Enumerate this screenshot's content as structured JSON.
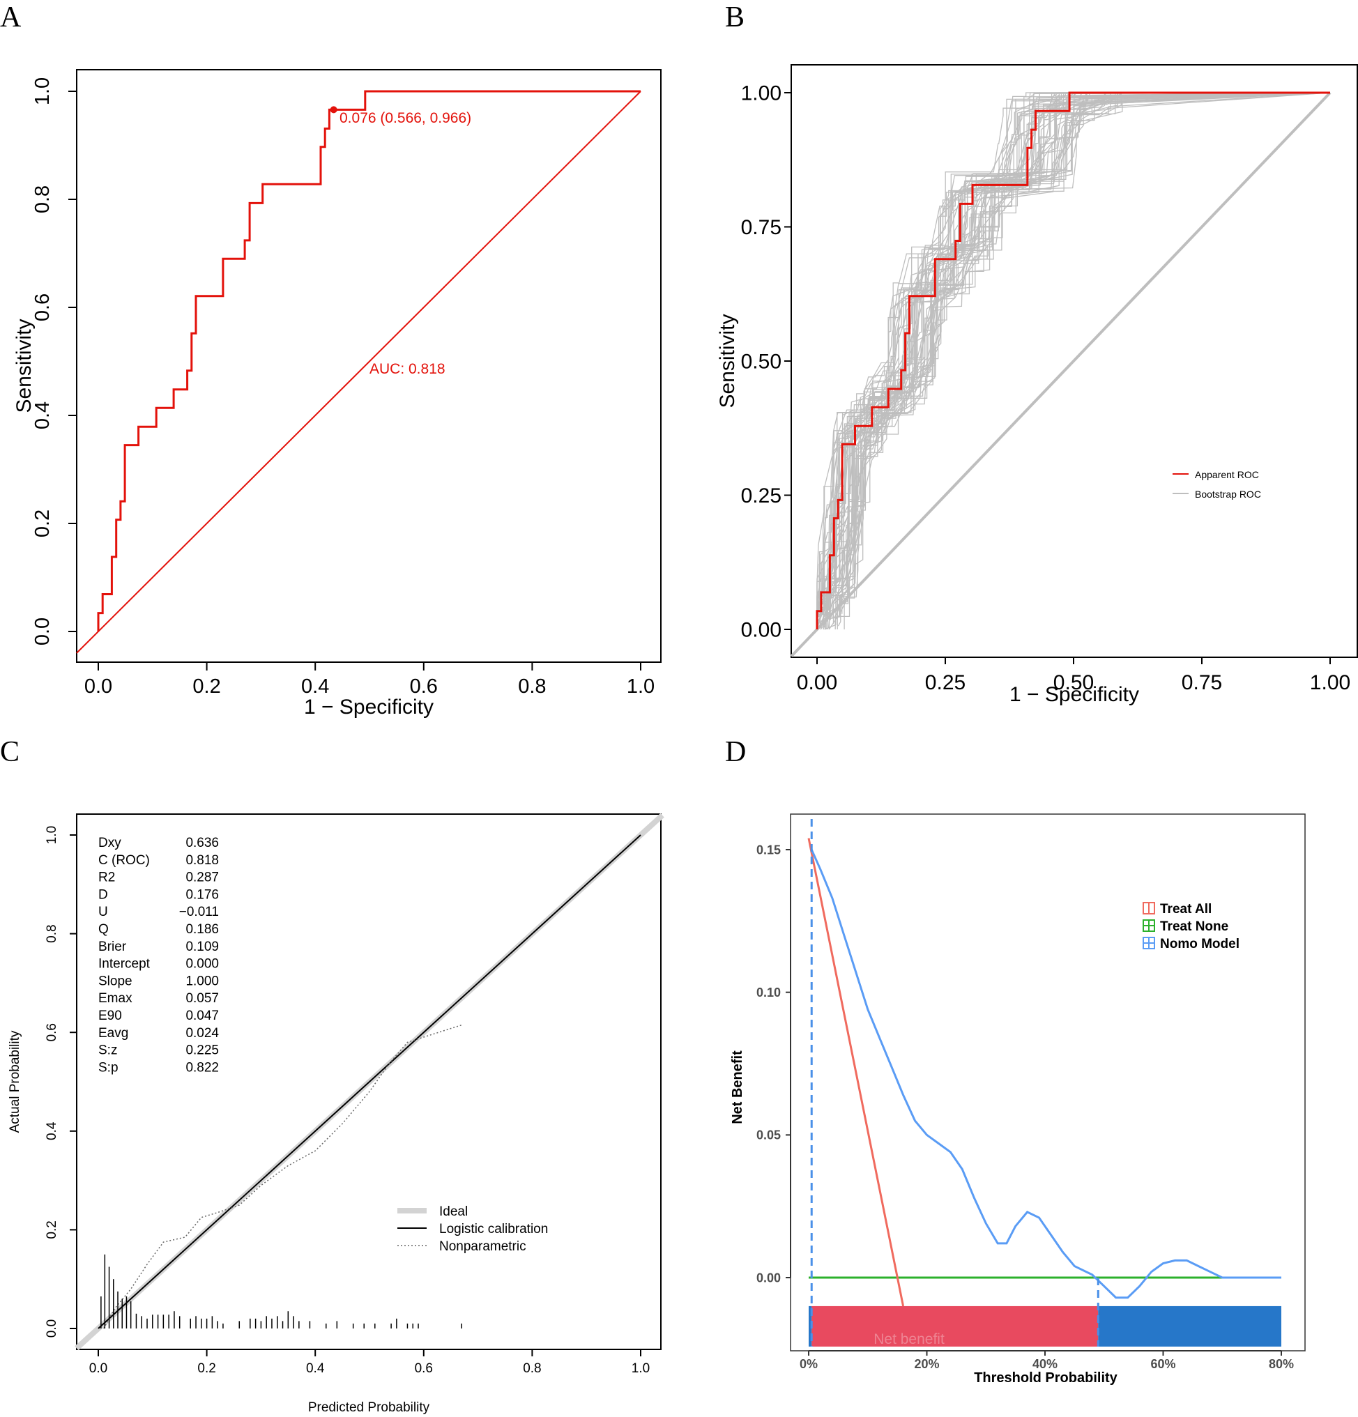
{
  "chart_data": [
    {
      "panel": "A",
      "type": "line",
      "title": "",
      "xlabel": "1 − Specificity",
      "ylabel": "Sensitivity",
      "xlim": [
        0,
        1
      ],
      "ylim": [
        0,
        1
      ],
      "xticks": [
        "0.0",
        "0.2",
        "0.4",
        "0.6",
        "0.8",
        "1.0"
      ],
      "yticks": [
        "0.0",
        "0.2",
        "0.4",
        "0.6",
        "0.8",
        "1.0"
      ],
      "auc_label": "AUC: 0.818",
      "threshold_label": "0.076 (0.566, 0.966)",
      "threshold_point": {
        "x": 0.434,
        "y": 0.966
      },
      "colors": {
        "roc": "#e3120b",
        "diagonal": "#e3120b"
      },
      "roc_points": [
        [
          0.0,
          0.0
        ],
        [
          0.0,
          0.034
        ],
        [
          0.008,
          0.034
        ],
        [
          0.008,
          0.069
        ],
        [
          0.025,
          0.069
        ],
        [
          0.025,
          0.138
        ],
        [
          0.033,
          0.138
        ],
        [
          0.033,
          0.207
        ],
        [
          0.041,
          0.207
        ],
        [
          0.041,
          0.241
        ],
        [
          0.049,
          0.241
        ],
        [
          0.049,
          0.345
        ],
        [
          0.074,
          0.345
        ],
        [
          0.074,
          0.379
        ],
        [
          0.107,
          0.379
        ],
        [
          0.107,
          0.414
        ],
        [
          0.139,
          0.414
        ],
        [
          0.139,
          0.448
        ],
        [
          0.164,
          0.448
        ],
        [
          0.164,
          0.483
        ],
        [
          0.172,
          0.483
        ],
        [
          0.172,
          0.552
        ],
        [
          0.18,
          0.552
        ],
        [
          0.18,
          0.621
        ],
        [
          0.23,
          0.621
        ],
        [
          0.23,
          0.69
        ],
        [
          0.27,
          0.69
        ],
        [
          0.27,
          0.724
        ],
        [
          0.279,
          0.724
        ],
        [
          0.279,
          0.793
        ],
        [
          0.303,
          0.793
        ],
        [
          0.303,
          0.828
        ],
        [
          0.41,
          0.828
        ],
        [
          0.41,
          0.897
        ],
        [
          0.418,
          0.897
        ],
        [
          0.418,
          0.931
        ],
        [
          0.426,
          0.931
        ],
        [
          0.426,
          0.966
        ],
        [
          0.492,
          0.966
        ],
        [
          0.492,
          1.0
        ],
        [
          1.0,
          1.0
        ]
      ]
    },
    {
      "panel": "B",
      "type": "line",
      "title": "",
      "xlabel": "1 − Specificity",
      "ylabel": "Sensitivity",
      "xlim": [
        0,
        1
      ],
      "ylim": [
        0,
        1
      ],
      "xticks": [
        "0.00",
        "0.25",
        "0.50",
        "0.75",
        "1.00"
      ],
      "yticks": [
        "0.00",
        "0.25",
        "0.50",
        "0.75",
        "1.00"
      ],
      "bootstrap_replicates": 60,
      "colors": {
        "apparent": "#e3120b",
        "bootstrap": "#bebebe",
        "diagonal": "#bebebe"
      },
      "legend": [
        {
          "label": "Apparent ROC",
          "color": "#e3120b"
        },
        {
          "label": "Bootstrap ROC",
          "color": "#bebebe"
        }
      ],
      "legend_position": "right-center",
      "roc_points": [
        [
          0.0,
          0.0
        ],
        [
          0.0,
          0.034
        ],
        [
          0.008,
          0.034
        ],
        [
          0.008,
          0.069
        ],
        [
          0.025,
          0.069
        ],
        [
          0.025,
          0.138
        ],
        [
          0.033,
          0.138
        ],
        [
          0.033,
          0.207
        ],
        [
          0.041,
          0.207
        ],
        [
          0.041,
          0.241
        ],
        [
          0.049,
          0.241
        ],
        [
          0.049,
          0.345
        ],
        [
          0.074,
          0.345
        ],
        [
          0.074,
          0.379
        ],
        [
          0.107,
          0.379
        ],
        [
          0.107,
          0.414
        ],
        [
          0.139,
          0.414
        ],
        [
          0.139,
          0.448
        ],
        [
          0.164,
          0.448
        ],
        [
          0.164,
          0.483
        ],
        [
          0.172,
          0.483
        ],
        [
          0.172,
          0.552
        ],
        [
          0.18,
          0.552
        ],
        [
          0.18,
          0.621
        ],
        [
          0.23,
          0.621
        ],
        [
          0.23,
          0.69
        ],
        [
          0.27,
          0.69
        ],
        [
          0.27,
          0.724
        ],
        [
          0.279,
          0.724
        ],
        [
          0.279,
          0.793
        ],
        [
          0.303,
          0.793
        ],
        [
          0.303,
          0.828
        ],
        [
          0.41,
          0.828
        ],
        [
          0.41,
          0.897
        ],
        [
          0.418,
          0.897
        ],
        [
          0.418,
          0.931
        ],
        [
          0.426,
          0.931
        ],
        [
          0.426,
          0.966
        ],
        [
          0.492,
          0.966
        ],
        [
          0.492,
          1.0
        ],
        [
          1.0,
          1.0
        ]
      ]
    },
    {
      "panel": "C",
      "type": "line",
      "title": "",
      "xlabel": "Predicted Probability",
      "ylabel": "Actual Probability",
      "xlim": [
        0,
        1
      ],
      "ylim": [
        0,
        1
      ],
      "xticks": [
        "0.0",
        "0.2",
        "0.4",
        "0.6",
        "0.8",
        "1.0"
      ],
      "yticks": [
        "0.0",
        "0.2",
        "0.4",
        "0.6",
        "0.8",
        "1.0"
      ],
      "stats": [
        {
          "name": "Dxy",
          "value": "0.636"
        },
        {
          "name": "C (ROC)",
          "value": "0.818"
        },
        {
          "name": "R2",
          "value": "0.287"
        },
        {
          "name": "D",
          "value": "0.176"
        },
        {
          "name": "U",
          "value": "−0.011"
        },
        {
          "name": "Q",
          "value": "0.186"
        },
        {
          "name": "Brier",
          "value": "0.109"
        },
        {
          "name": "Intercept",
          "value": "0.000"
        },
        {
          "name": "Slope",
          "value": "1.000"
        },
        {
          "name": "Emax",
          "value": "0.057"
        },
        {
          "name": "E90",
          "value": "0.047"
        },
        {
          "name": "Eavg",
          "value": "0.024"
        },
        {
          "name": "S:z",
          "value": "0.225"
        },
        {
          "name": "S:p",
          "value": "0.822"
        }
      ],
      "legend": [
        {
          "label": "Ideal",
          "style": "thick-grey"
        },
        {
          "label": "Logistic calibration",
          "style": "solid"
        },
        {
          "label": "Nonparametric",
          "style": "dotted"
        }
      ],
      "legend_position": "bottom-right",
      "nonparametric": [
        [
          0.01,
          0.0
        ],
        [
          0.03,
          0.04
        ],
        [
          0.06,
          0.08
        ],
        [
          0.09,
          0.13
        ],
        [
          0.12,
          0.175
        ],
        [
          0.16,
          0.185
        ],
        [
          0.19,
          0.225
        ],
        [
          0.22,
          0.235
        ],
        [
          0.26,
          0.25
        ],
        [
          0.3,
          0.29
        ],
        [
          0.35,
          0.33
        ],
        [
          0.4,
          0.36
        ],
        [
          0.45,
          0.415
        ],
        [
          0.5,
          0.48
        ],
        [
          0.535,
          0.535
        ],
        [
          0.57,
          0.58
        ],
        [
          0.67,
          0.615
        ]
      ],
      "rug": [
        [
          0.005,
          0.065
        ],
        [
          0.012,
          0.15
        ],
        [
          0.02,
          0.125
        ],
        [
          0.028,
          0.1
        ],
        [
          0.036,
          0.075
        ],
        [
          0.044,
          0.06
        ],
        [
          0.052,
          0.065
        ],
        [
          0.06,
          0.055
        ],
        [
          0.07,
          0.03
        ],
        [
          0.08,
          0.025
        ],
        [
          0.09,
          0.02
        ],
        [
          0.1,
          0.028
        ],
        [
          0.11,
          0.028
        ],
        [
          0.12,
          0.028
        ],
        [
          0.13,
          0.028
        ],
        [
          0.14,
          0.035
        ],
        [
          0.15,
          0.025
        ],
        [
          0.17,
          0.02
        ],
        [
          0.18,
          0.025
        ],
        [
          0.19,
          0.02
        ],
        [
          0.2,
          0.02
        ],
        [
          0.21,
          0.025
        ],
        [
          0.22,
          0.015
        ],
        [
          0.23,
          0.01
        ],
        [
          0.26,
          0.015
        ],
        [
          0.28,
          0.02
        ],
        [
          0.29,
          0.02
        ],
        [
          0.3,
          0.015
        ],
        [
          0.31,
          0.025
        ],
        [
          0.32,
          0.02
        ],
        [
          0.33,
          0.025
        ],
        [
          0.34,
          0.015
        ],
        [
          0.35,
          0.035
        ],
        [
          0.36,
          0.025
        ],
        [
          0.37,
          0.015
        ],
        [
          0.39,
          0.015
        ],
        [
          0.42,
          0.01
        ],
        [
          0.44,
          0.015
        ],
        [
          0.47,
          0.01
        ],
        [
          0.49,
          0.01
        ],
        [
          0.51,
          0.01
        ],
        [
          0.54,
          0.01
        ],
        [
          0.55,
          0.02
        ],
        [
          0.57,
          0.01
        ],
        [
          0.58,
          0.01
        ],
        [
          0.59,
          0.01
        ],
        [
          0.67,
          0.01
        ]
      ]
    },
    {
      "panel": "D",
      "type": "line",
      "title": "",
      "xlabel": "Threshold Probability",
      "ylabel": "Net Benefit",
      "xlim": [
        0,
        0.8
      ],
      "ylim": [
        -0.02,
        0.16
      ],
      "xticks": [
        "0%",
        "20%",
        "40%",
        "60%",
        "80%"
      ],
      "yticks": [
        "0.00",
        "0.05",
        "0.10",
        "0.15"
      ],
      "legend": [
        {
          "label": "Treat All",
          "color": "#f06a5e"
        },
        {
          "label": "Treat None",
          "color": "#2cb12c"
        },
        {
          "label": "Nomo Model",
          "color": "#5a9cf5"
        }
      ],
      "legend_position": "top-right",
      "highlight_threshold": 0.005,
      "band_split": 0.49,
      "band_colors": {
        "left": "#e84a5f",
        "right": "#2677c9",
        "edge": "#2677c9"
      },
      "band_text": "Net benefit",
      "series": [
        {
          "name": "Treat All",
          "color": "#f06a5e",
          "points": [
            [
              0.0,
              0.154
            ],
            [
              0.16,
              -0.01
            ]
          ]
        },
        {
          "name": "Treat None",
          "color": "#2cb12c",
          "points": [
            [
              0.0,
              0.0
            ],
            [
              0.8,
              0.0
            ]
          ]
        },
        {
          "name": "Nomo Model",
          "color": "#5a9cf5",
          "points": [
            [
              0.005,
              0.15
            ],
            [
              0.02,
              0.143
            ],
            [
              0.04,
              0.133
            ],
            [
              0.06,
              0.12
            ],
            [
              0.08,
              0.107
            ],
            [
              0.1,
              0.094
            ],
            [
              0.12,
              0.084
            ],
            [
              0.14,
              0.074
            ],
            [
              0.16,
              0.064
            ],
            [
              0.18,
              0.055
            ],
            [
              0.2,
              0.05
            ],
            [
              0.22,
              0.047
            ],
            [
              0.24,
              0.044
            ],
            [
              0.26,
              0.038
            ],
            [
              0.28,
              0.028
            ],
            [
              0.3,
              0.019
            ],
            [
              0.32,
              0.012
            ],
            [
              0.335,
              0.012
            ],
            [
              0.35,
              0.018
            ],
            [
              0.37,
              0.023
            ],
            [
              0.39,
              0.021
            ],
            [
              0.41,
              0.015
            ],
            [
              0.43,
              0.009
            ],
            [
              0.45,
              0.004
            ],
            [
              0.48,
              0.001
            ],
            [
              0.5,
              -0.003
            ],
            [
              0.52,
              -0.007
            ],
            [
              0.54,
              -0.007
            ],
            [
              0.56,
              -0.003
            ],
            [
              0.58,
              0.002
            ],
            [
              0.6,
              0.005
            ],
            [
              0.62,
              0.006
            ],
            [
              0.64,
              0.006
            ],
            [
              0.66,
              0.004
            ],
            [
              0.68,
              0.002
            ],
            [
              0.7,
              0.0
            ],
            [
              0.8,
              0.0
            ]
          ]
        }
      ]
    }
  ],
  "panels": {
    "a": {
      "letter": "A"
    },
    "b": {
      "letter": "B"
    },
    "c": {
      "letter": "C"
    },
    "d": {
      "letter": "D"
    }
  }
}
